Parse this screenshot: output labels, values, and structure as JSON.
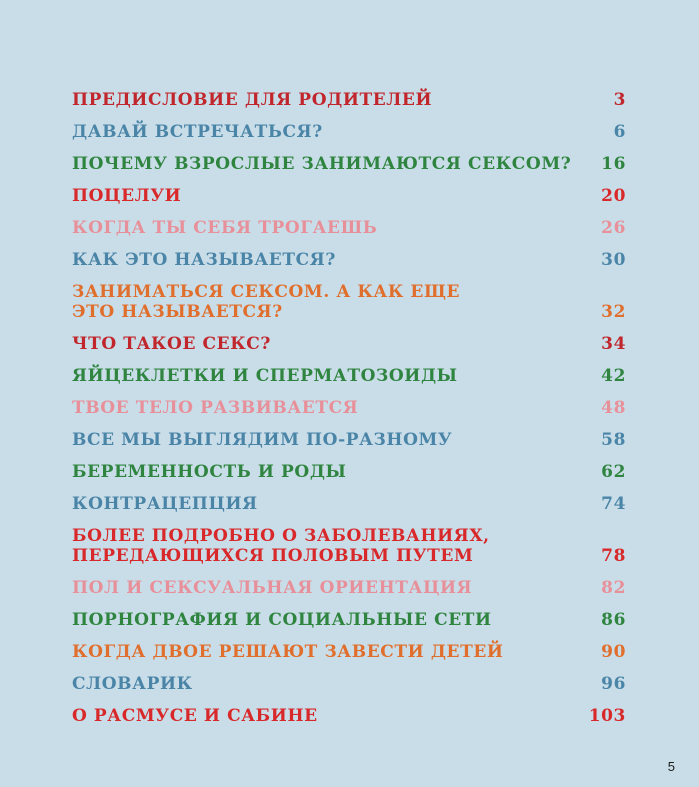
{
  "colors": {
    "background": "#c9dde8",
    "dark_red": "#c0262b",
    "blue": "#4a85a8",
    "green": "#2f8540",
    "red": "#d8282a",
    "pink": "#e8909a",
    "orange": "#e06e2c"
  },
  "toc": [
    {
      "title": "ПРЕДИСЛОВИЕ ДЛЯ РОДИТЕЛЕЙ",
      "page": "3",
      "color": "#c0262b"
    },
    {
      "title": "ДАВАЙ ВСТРЕЧАТЬСЯ?",
      "page": "6",
      "color": "#4a85a8"
    },
    {
      "title": "ПОЧЕМУ ВЗРОСЛЫЕ ЗАНИМАЮТСЯ СЕКСОМ?",
      "page": "16",
      "color": "#2f8540"
    },
    {
      "title": "ПОЦЕЛУИ",
      "page": "20",
      "color": "#d8282a"
    },
    {
      "title": "КОГДА ТЫ СЕБЯ ТРОГАЕШЬ",
      "page": "26",
      "color": "#e8909a"
    },
    {
      "title": "КАК ЭТО НАЗЫВАЕТСЯ?",
      "page": "30",
      "color": "#4a85a8"
    },
    {
      "title": "ЗАНИМАТЬСЯ СЕКСОМ. А КАК ЕЩЕ\nЭТО НАЗЫВАЕТСЯ?",
      "page": "32",
      "color": "#e06e2c"
    },
    {
      "title": "ЧТО ТАКОЕ СЕКС?",
      "page": "34",
      "color": "#c0262b"
    },
    {
      "title": "ЯЙЦЕКЛЕТКИ И СПЕРМАТОЗОИДЫ",
      "page": "42",
      "color": "#2f8540"
    },
    {
      "title": "ТВОЕ ТЕЛО РАЗВИВАЕТСЯ",
      "page": "48",
      "color": "#e8909a"
    },
    {
      "title": "ВСЕ МЫ ВЫГЛЯДИМ ПО-РАЗНОМУ",
      "page": "58",
      "color": "#4a85a8"
    },
    {
      "title": "БЕРЕМЕННОСТЬ И РОДЫ",
      "page": "62",
      "color": "#2f8540"
    },
    {
      "title": "КОНТРАЦЕПЦИЯ",
      "page": "74",
      "color": "#4a85a8"
    },
    {
      "title": "БОЛЕЕ ПОДРОБНО О ЗАБОЛЕВАНИЯХ,\nПЕРЕДАЮЩИХСЯ ПОЛОВЫМ ПУТЕМ",
      "page": "78",
      "color": "#d8282a"
    },
    {
      "title": "ПОЛ И СЕКСУАЛЬНАЯ ОРИЕНТАЦИЯ",
      "page": "82",
      "color": "#e8909a"
    },
    {
      "title": "ПОРНОГРАФИЯ И СОЦИАЛЬНЫЕ СЕТИ",
      "page": "86",
      "color": "#2f8540"
    },
    {
      "title": "КОГДА ДВОЕ РЕШАЮТ ЗАВЕСТИ ДЕТЕЙ",
      "page": "90",
      "color": "#e06e2c"
    },
    {
      "title": "СЛОВАРИК",
      "page": "96",
      "color": "#4a85a8"
    },
    {
      "title": "О РАСМУСЕ И САБИНЕ",
      "page": "103",
      "color": "#d8282a"
    }
  ],
  "page_number": "5"
}
